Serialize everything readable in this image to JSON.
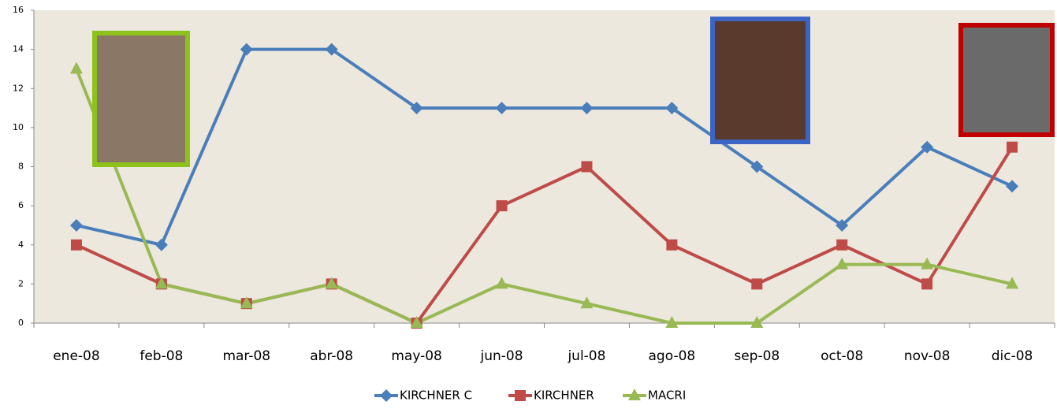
{
  "chart_data": {
    "type": "line",
    "categories": [
      "ene-08",
      "feb-08",
      "mar-08",
      "abr-08",
      "may-08",
      "jun-08",
      "jul-08",
      "ago-08",
      "sep-08",
      "oct-08",
      "nov-08",
      "dic-08"
    ],
    "series": [
      {
        "name": "KIRCHNER C",
        "color": "#4a7ebb",
        "marker": "diamond",
        "values": [
          5,
          4,
          14,
          14,
          11,
          11,
          11,
          11,
          8,
          5,
          9,
          7
        ]
      },
      {
        "name": "KIRCHNER",
        "color": "#be4b48",
        "marker": "square",
        "values": [
          4,
          2,
          1,
          2,
          0,
          6,
          8,
          4,
          2,
          4,
          2,
          9
        ]
      },
      {
        "name": "MACRI",
        "color": "#98b954",
        "marker": "triangle",
        "values": [
          13,
          2,
          1,
          2,
          0,
          2,
          1,
          0,
          0,
          3,
          3,
          2
        ]
      }
    ],
    "ylim": [
      0,
      16
    ],
    "yticks": [
      0,
      2,
      4,
      6,
      8,
      10,
      12,
      14,
      16
    ],
    "grid": false,
    "legend": "bottom"
  }
}
